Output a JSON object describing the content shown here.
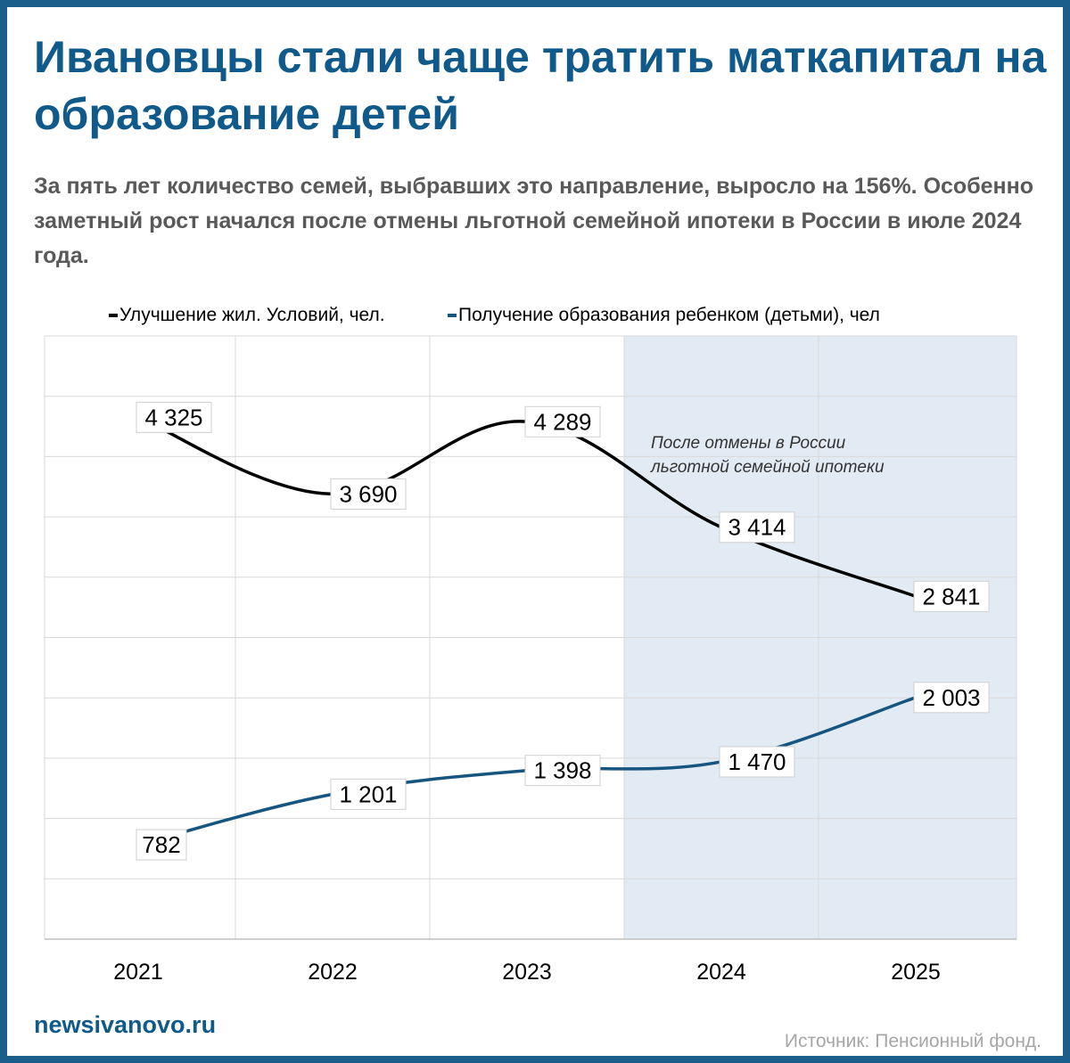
{
  "title": "Ивановцы стали чаще тратить маткапитал на образование детей",
  "subtitle": "За пять лет количество семей, выбравших это направление, выросло на 156%. Особенно заметный рост начался после отмены льготной семейной ипотеки в России в июле 2024 года.",
  "footer": {
    "site": "newsivanovo.ru",
    "source": "Источник: Пенсионный фонд."
  },
  "chart_data": {
    "type": "line",
    "categories": [
      "2021",
      "2022",
      "2023",
      "2024",
      "2025"
    ],
    "series": [
      {
        "name": "Улучшение жил. Условий, чел.",
        "values": [
          4325,
          3690,
          4289,
          3414,
          2841
        ],
        "labels": [
          "4 325",
          "3 690",
          "4 289",
          "3 414",
          "2 841"
        ],
        "color": "#000000"
      },
      {
        "name": "Получение образования ребенком (детьми), чел",
        "values": [
          782,
          1201,
          1398,
          1470,
          2003
        ],
        "labels": [
          "782",
          "1 201",
          "1 398",
          "1 470",
          "2 003"
        ],
        "color": "#15557f"
      }
    ],
    "ylim": [
      0,
      5000
    ],
    "grid": true,
    "legend": "top",
    "highlight": {
      "from": "2024",
      "to": "2025",
      "color": "#e2ebf3",
      "annotation": [
        "После отмены в России",
        "льготной семейной ипотеки"
      ]
    }
  }
}
